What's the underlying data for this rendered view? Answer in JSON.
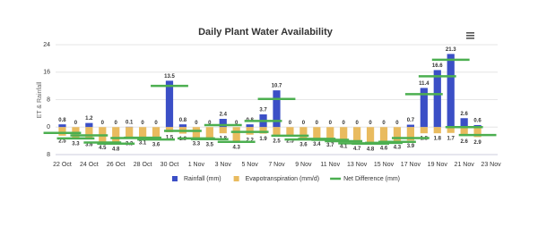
{
  "chart_data": {
    "type": "bar",
    "title": "Daily Plant Water Availability",
    "y_label": "ET & Rainfall",
    "categories": [
      "22 Oct",
      null,
      "24 Oct",
      null,
      "26 Oct",
      null,
      "28 Oct",
      null,
      "30 Oct",
      null,
      "1 Nov",
      null,
      "3 Nov",
      null,
      "5 Nov",
      null,
      "7 Nov",
      null,
      "9 Nov",
      null,
      "11 Nov",
      null,
      "13 Nov",
      null,
      "15 Nov",
      null,
      "17 Nov",
      null,
      "19 Nov",
      null,
      "21 Nov",
      null,
      "23 Nov"
    ],
    "series": [
      {
        "name": "Rainfall (mm)",
        "color": "#3b4fc6",
        "kind": "bar",
        "values": [
          0.8,
          0,
          1.2,
          0,
          0,
          0.1,
          0,
          0,
          13.5,
          0.8,
          0,
          0,
          2.4,
          0,
          0.8,
          3.7,
          10.7,
          0,
          0,
          0,
          0,
          0,
          0,
          0,
          0,
          0,
          0.7,
          11.4,
          16.6,
          21.3,
          2.6,
          0.6,
          null
        ]
      },
      {
        "name": "Evapotranspiration (mm/d)",
        "color": "#e9bb5f",
        "kind": "bar",
        "values": [
          -2.5,
          -3.3,
          -3.6,
          -4.5,
          -4.8,
          -3.3,
          -3.1,
          -3.6,
          -1.5,
          -1.9,
          -3.3,
          -3.5,
          -1.8,
          -4.3,
          -2.2,
          -1.9,
          -2.5,
          -2.5,
          -3.6,
          -3.4,
          -3.7,
          -4.1,
          -4.7,
          -4.8,
          -4.6,
          -4.3,
          -3.9,
          -1.8,
          -1.8,
          -1.7,
          -2.6,
          -2.9,
          null
        ],
        "value_labels": [
          "2.5",
          "3.3",
          "3.6",
          "4.5",
          "4.8",
          "3.3",
          "3.1",
          "3.6",
          "1.5",
          "1.9",
          "3.3",
          "3.5",
          "1.8",
          "4.3",
          "2.2",
          "1.9",
          "2.5",
          "2.5",
          "3.6",
          "3.4",
          "3.7",
          "4.1",
          "4.7",
          "4.8",
          "4.6",
          "4.3",
          "3.9",
          "1.8",
          "1.8",
          "1.7",
          "2.6",
          "2.9",
          null
        ]
      },
      {
        "name": "Net Difference (mm)",
        "color": "#4caf50",
        "kind": "marker",
        "values": [
          -1.7,
          -3.3,
          -2.4,
          -4.5,
          -4.8,
          -3.2,
          -3.1,
          -3.6,
          12.0,
          -1.1,
          -3.3,
          -3.5,
          0.6,
          -4.3,
          -1.4,
          1.8,
          8.2,
          -2.5,
          -3.6,
          -3.4,
          -3.7,
          -4.1,
          -4.7,
          -4.8,
          -4.6,
          -4.3,
          -3.2,
          9.6,
          14.8,
          19.6,
          0,
          -2.3,
          null
        ]
      }
    ],
    "ylim": [
      -8,
      24
    ],
    "yticks": [
      {
        "value": -8,
        "label": "8"
      },
      0,
      8,
      16,
      24
    ],
    "grid": true,
    "legend": "bottom"
  }
}
